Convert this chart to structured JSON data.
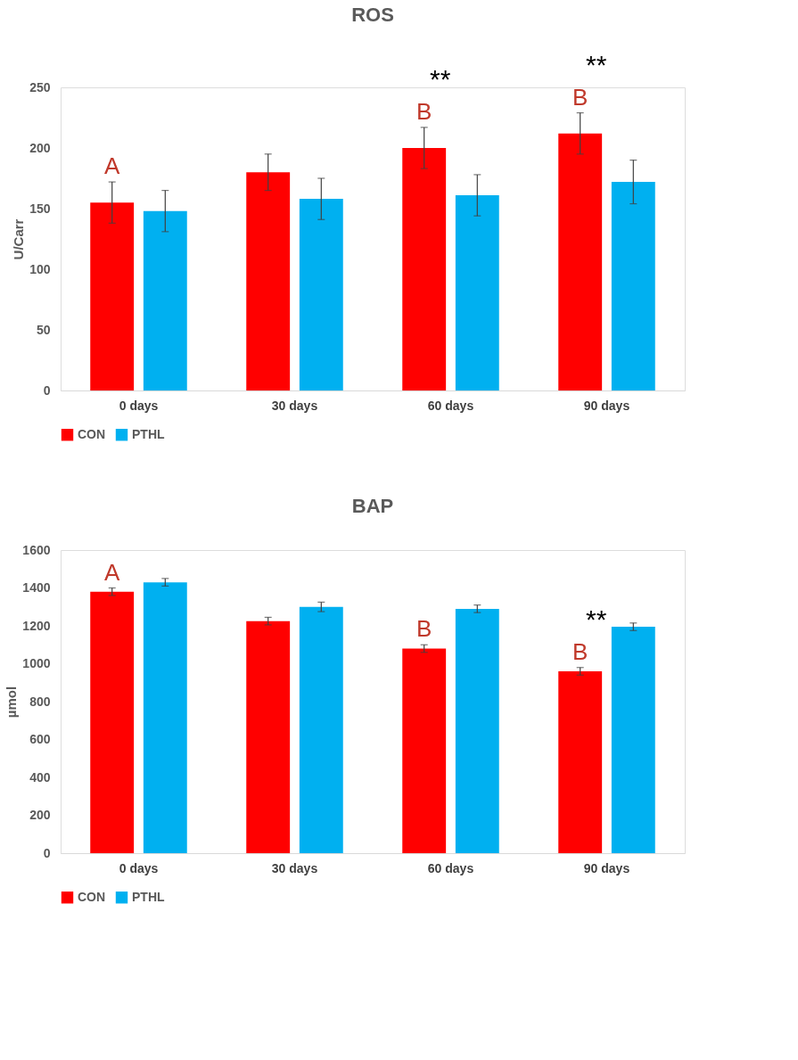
{
  "chart_data": [
    {
      "type": "bar",
      "title": "ROS",
      "ylabel": "U/Carr",
      "categories": [
        "0 days",
        "30 days",
        "60 days",
        "90 days"
      ],
      "series": [
        {
          "name": "CON",
          "color": "#ff0000",
          "values": [
            155,
            180,
            200,
            212
          ],
          "errors": [
            17,
            15,
            17,
            17
          ]
        },
        {
          "name": "PTHL",
          "color": "#00b0f0",
          "values": [
            148,
            158,
            161,
            172
          ],
          "errors": [
            17,
            17,
            17,
            18
          ]
        }
      ],
      "ylim": [
        0,
        250
      ],
      "yticks": [
        0,
        50,
        100,
        150,
        200,
        250
      ],
      "grid": false,
      "legend": "bottom",
      "annotations": [
        "A",
        "B",
        "**",
        "B",
        "**"
      ]
    },
    {
      "type": "bar",
      "title": "BAP",
      "ylabel": "µmol",
      "categories": [
        "0 days",
        "30 days",
        "60 days",
        "90 days"
      ],
      "series": [
        {
          "name": "CON",
          "color": "#ff0000",
          "values": [
            1380,
            1225,
            1080,
            960
          ],
          "errors": [
            20,
            20,
            20,
            20
          ]
        },
        {
          "name": "PTHL",
          "color": "#00b0f0",
          "values": [
            1430,
            1300,
            1290,
            1195
          ],
          "errors": [
            20,
            25,
            20,
            20
          ]
        }
      ],
      "ylim": [
        0,
        1600
      ],
      "yticks": [
        0,
        200,
        400,
        600,
        800,
        1000,
        1200,
        1400,
        1600
      ],
      "grid": false,
      "legend": "bottom",
      "annotations": [
        "A",
        "B",
        "B",
        "**"
      ]
    }
  ]
}
